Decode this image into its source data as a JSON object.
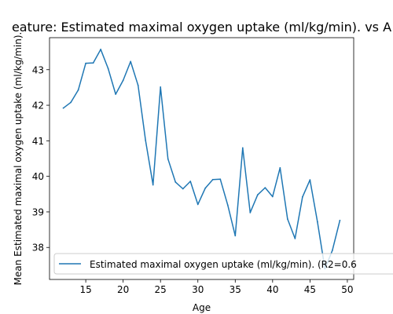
{
  "chart_data": {
    "type": "line",
    "title": "eature: Estimated maximal oxygen uptake (ml/kg/min). vs A",
    "xlabel": "Age",
    "ylabel": "Mean Estimated maximal oxygen uptake (ml/kg/min).",
    "xlim": [
      10.15,
      50.85
    ],
    "ylim": [
      37.1,
      43.9
    ],
    "x_ticks": [
      15,
      20,
      25,
      30,
      35,
      40,
      45,
      50
    ],
    "y_ticks": [
      38,
      39,
      40,
      41,
      42,
      43
    ],
    "grid": false,
    "legend_position": "lower-center",
    "series": [
      {
        "name": "Estimated maximal oxygen uptake (ml/kg/min). (R2=0.6",
        "color": "#1f77b4",
        "x": [
          12,
          13,
          14,
          15,
          16,
          17,
          18,
          19,
          20,
          21,
          22,
          23,
          24,
          25,
          26,
          27,
          28,
          29,
          30,
          31,
          32,
          33,
          34,
          35,
          36,
          37,
          38,
          39,
          40,
          41,
          42,
          43,
          44,
          45,
          46,
          47,
          48,
          49
        ],
        "y": [
          41.92,
          42.08,
          42.43,
          43.18,
          43.19,
          43.57,
          43.03,
          42.31,
          42.7,
          43.23,
          42.56,
          41.01,
          39.76,
          42.51,
          40.49,
          39.84,
          39.65,
          39.86,
          39.21,
          39.67,
          39.91,
          39.92,
          39.19,
          38.33,
          40.8,
          38.98,
          39.48,
          39.68,
          39.43,
          40.24,
          38.8,
          38.25,
          39.42,
          39.9,
          38.72,
          37.4,
          37.92,
          38.76
        ]
      }
    ]
  }
}
